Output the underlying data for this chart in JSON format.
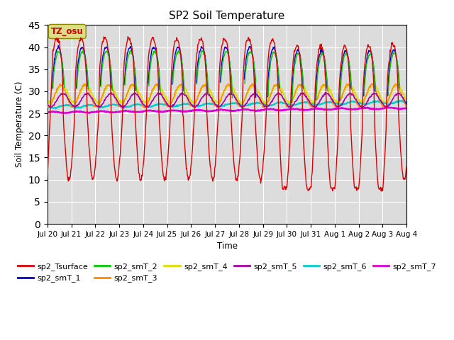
{
  "title": "SP2 Soil Temperature",
  "ylabel": "Soil Temperature (C)",
  "xlabel": "Time",
  "ylim": [
    0,
    45
  ],
  "yticks": [
    0,
    5,
    10,
    15,
    20,
    25,
    30,
    35,
    40,
    45
  ],
  "colors": {
    "sp2_Tsurface": "#dd0000",
    "sp2_smT_1": "#0000dd",
    "sp2_smT_2": "#00cc00",
    "sp2_smT_3": "#ff8800",
    "sp2_smT_4": "#dddd00",
    "sp2_smT_5": "#aa00aa",
    "sp2_smT_6": "#00cccc",
    "sp2_smT_7": "#dd00dd"
  },
  "annotation_text": "TZ_osu",
  "annotation_color": "#cc0000",
  "annotation_bg": "#dddd88",
  "n_days": 15,
  "pts_per_day": 48
}
